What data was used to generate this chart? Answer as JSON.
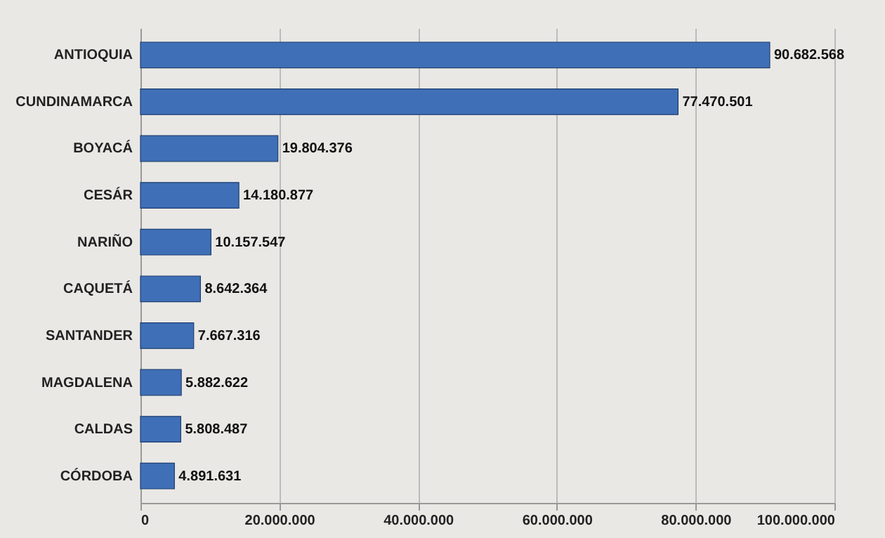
{
  "chart_data": {
    "type": "bar",
    "orientation": "horizontal",
    "categories": [
      "ANTIOQUIA",
      "CUNDINAMARCA",
      "BOYACÁ",
      "CESÁR",
      "NARIÑO",
      "CAQUETÁ",
      "SANTANDER",
      "MAGDALENA",
      "CALDAS",
      "CÓRDOBA"
    ],
    "values": [
      90682568,
      77470501,
      19804376,
      14180877,
      10157547,
      8642364,
      7667316,
      5882622,
      5808487,
      4891631
    ],
    "value_labels": [
      "90.682.568",
      "77.470.501",
      "19.804.376",
      "14.180.877",
      "10.157.547",
      "8.642.364",
      "7.667.316",
      "5.882.622",
      "5.808.487",
      "4.891.631"
    ],
    "color": "#3f6fb6",
    "xlim": [
      0,
      100000000
    ],
    "xticks": [
      0,
      {
        "value": 20000000,
        "label": "20.000.000"
      },
      {
        "value": 40000000,
        "label": "40.000.000"
      },
      {
        "value": 60000000,
        "label": "60.000.000"
      },
      {
        "value": 80000000,
        "label": "80.000.000"
      },
      {
        "value": 100000000,
        "label": "100.000.000"
      }
    ],
    "grid": "x"
  }
}
